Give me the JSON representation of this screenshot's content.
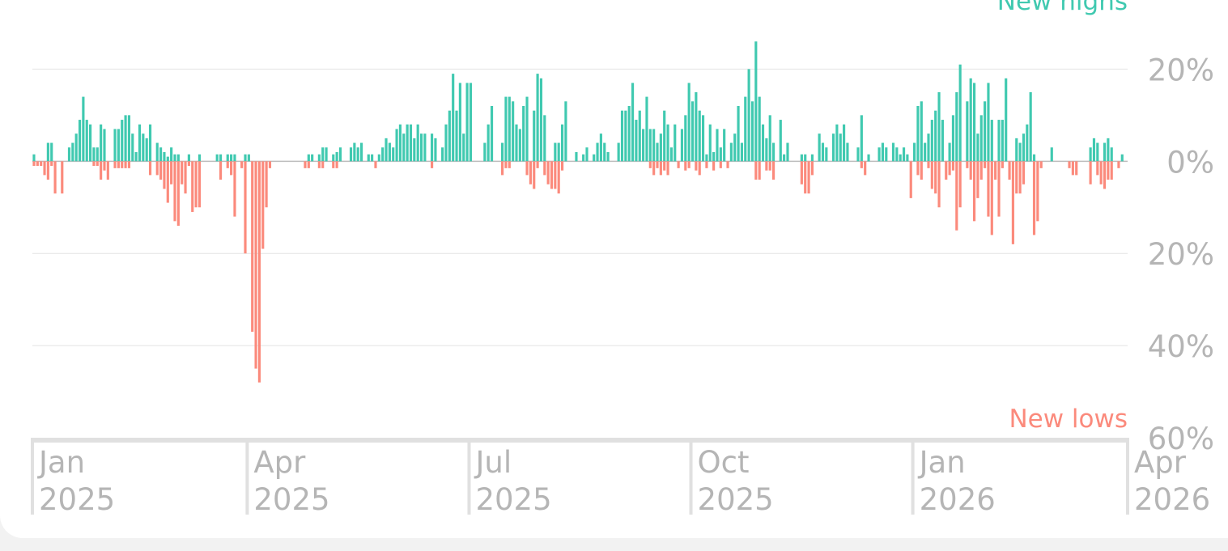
{
  "chart_data": {
    "type": "bar",
    "xticks": [
      {
        "value": 0,
        "label": "Jan 2025"
      },
      {
        "value": 61,
        "label": "Apr 2025"
      },
      {
        "value": 124,
        "label": "Jul 2025"
      },
      {
        "value": 187,
        "label": "Oct 2025"
      },
      {
        "value": 250,
        "label": "Jan 2026"
      },
      {
        "value": 311,
        "label": "Apr 2026"
      }
    ],
    "xlim": [
      0,
      311
    ],
    "ylim": [
      -60,
      35
    ],
    "yticks": [
      {
        "value": 20,
        "label": "20%"
      },
      {
        "value": 0,
        "label": "0%"
      },
      {
        "value": -20,
        "label": "20%"
      },
      {
        "value": -40,
        "label": "40%"
      },
      {
        "value": -60,
        "label": "60%"
      }
    ],
    "grid": true,
    "series": [
      {
        "name": "New highs",
        "color": "#40c9b0",
        "values": [
          1.5,
          0,
          0,
          0,
          4,
          4,
          0,
          0,
          0,
          0,
          3,
          4,
          6,
          9,
          14,
          9,
          8,
          3,
          3,
          8,
          7,
          0,
          0,
          7,
          7,
          9,
          10,
          10,
          6,
          2,
          8,
          6,
          5,
          8,
          0,
          4,
          3,
          2,
          1,
          3,
          1.5,
          1.5,
          0,
          0,
          1.5,
          0,
          0,
          1.5,
          0,
          0,
          0,
          0,
          1.5,
          1.5,
          0,
          1.5,
          1.5,
          1.5,
          0,
          0,
          1.5,
          1.5,
          0,
          0,
          0,
          0,
          0,
          0,
          0,
          0,
          0,
          0,
          0,
          0,
          0,
          0,
          0,
          0,
          1.5,
          1.5,
          0,
          1.5,
          3,
          3,
          0,
          1.5,
          2,
          3,
          0,
          0,
          3,
          4,
          3,
          4,
          0,
          1.5,
          1.5,
          0,
          1.5,
          3,
          5,
          4,
          3,
          7,
          8,
          6,
          8,
          8,
          5,
          8,
          6,
          6,
          0,
          6,
          5,
          0,
          3,
          8,
          11,
          19,
          11,
          17,
          6,
          17,
          17,
          0,
          0,
          0,
          4,
          8,
          12,
          0,
          0,
          4,
          14,
          14,
          13,
          8,
          7,
          12,
          14,
          0,
          11,
          19,
          18,
          10,
          0,
          0,
          4,
          4,
          8,
          13,
          0,
          0,
          2,
          0,
          1.5,
          3,
          0,
          1.5,
          4,
          6,
          4,
          2,
          0,
          0,
          4,
          11,
          11,
          12,
          17,
          9,
          11,
          7,
          14,
          7,
          7,
          4,
          6,
          11,
          8,
          3,
          8,
          0,
          7,
          10,
          17,
          13,
          15,
          11,
          10,
          1.5,
          8,
          2,
          7,
          3,
          7,
          0,
          4,
          6,
          12,
          4,
          14,
          20,
          13,
          26,
          14,
          8,
          5,
          10,
          4,
          0,
          9,
          1.5,
          4,
          0,
          0,
          0,
          1.5,
          1.5,
          0,
          1.5,
          0,
          6,
          4,
          3,
          0,
          6,
          8,
          6,
          8,
          4,
          0,
          0,
          3,
          10,
          0,
          1.5,
          0,
          0,
          3,
          4,
          3,
          0,
          4,
          3,
          1.5,
          3,
          1.5,
          0,
          4,
          12,
          13,
          4,
          6,
          9,
          11,
          15,
          9,
          0,
          4,
          10,
          15,
          21,
          0,
          13,
          18,
          17,
          6,
          10,
          13,
          17,
          9,
          0,
          9,
          9,
          18,
          0,
          0,
          5,
          4,
          6,
          8,
          15,
          1.5,
          0,
          0,
          0,
          0,
          3,
          0,
          0,
          0,
          0,
          0,
          0,
          0,
          0,
          0,
          0,
          3,
          5,
          4,
          0,
          4,
          5,
          3,
          0,
          0,
          1.5,
          0
        ]
      },
      {
        "name": "New lows",
        "color": "#fb8a7c",
        "values": [
          -1,
          -1,
          -1,
          -3,
          -4,
          -1,
          -7,
          0,
          -7,
          0,
          0,
          0,
          0,
          0,
          0,
          0,
          0,
          -1,
          -1,
          -4,
          -2,
          -4,
          0,
          -1.5,
          -1.5,
          -1.5,
          -1.5,
          -1.5,
          0,
          0,
          0,
          0,
          0,
          -3,
          0,
          -3,
          -4,
          -6,
          -9,
          -5,
          -13,
          -14,
          -5,
          -7,
          -1,
          -11,
          -10,
          -10,
          0,
          0,
          0,
          0,
          0,
          -4,
          0,
          -1.5,
          -3,
          -12,
          0,
          -1.5,
          -20,
          0,
          -37,
          -45,
          -48,
          -19,
          -10,
          -1.5,
          0,
          0,
          0,
          0,
          0,
          0,
          0,
          0,
          0,
          -1.5,
          -1.5,
          0,
          0,
          -1.5,
          -1.5,
          0,
          0,
          -1.5,
          -1.5,
          0,
          0,
          0,
          0,
          0,
          0,
          0,
          0,
          0,
          0,
          -1.5,
          0,
          0,
          0,
          0,
          0,
          0,
          0,
          0,
          0,
          0,
          0,
          0,
          0,
          0,
          0,
          -1.5,
          0,
          0,
          0,
          0,
          0,
          0,
          0,
          0,
          0,
          0,
          0,
          0,
          0,
          0,
          0,
          0,
          0,
          0,
          0,
          -3,
          -1.5,
          -1.5,
          0,
          0,
          0,
          0,
          -3,
          -5,
          -6,
          -1.5,
          0,
          -3,
          -5,
          -6,
          -6,
          -7,
          -2,
          0,
          0,
          0,
          0,
          0,
          0,
          0,
          0,
          0,
          0,
          0,
          0,
          0,
          0,
          0,
          0,
          0,
          0,
          0,
          0,
          0,
          0,
          0,
          0,
          -1.5,
          -3,
          -1.5,
          -3,
          -2,
          -3,
          0,
          0,
          -1.5,
          0,
          -2,
          -1.5,
          0,
          -2,
          -3,
          0,
          -1.5,
          0,
          -2,
          0,
          -1.5,
          0,
          -1.5,
          0,
          0,
          0,
          0,
          0,
          0,
          0,
          -4,
          -4,
          0,
          -2,
          -2,
          -4,
          0,
          0,
          0,
          0,
          0,
          0,
          0,
          -5,
          -7,
          -7,
          -3,
          0,
          0,
          0,
          0,
          0,
          0,
          0,
          0,
          0,
          0,
          0,
          0,
          0,
          -1.5,
          -3,
          0,
          0,
          0,
          0,
          0,
          0,
          0,
          0,
          0,
          0,
          0,
          0,
          -8,
          0,
          -3,
          -4,
          0,
          -1.5,
          -6,
          -7,
          -10,
          0,
          -4,
          -3,
          -2,
          -15,
          -10,
          0,
          -1.5,
          -4,
          -13,
          -8,
          -4,
          -1.5,
          -12,
          -16,
          -4,
          -12,
          -1.5,
          0,
          -4,
          -18,
          -7,
          -7,
          -5,
          0,
          0,
          -16,
          -13,
          -1.5,
          0,
          0,
          0,
          0,
          0,
          0,
          0,
          -1.5,
          -3,
          -3,
          0,
          0,
          0,
          -5,
          0,
          -3,
          -5,
          -6,
          -4,
          -4,
          0,
          -1.5,
          0,
          0
        ]
      }
    ]
  }
}
